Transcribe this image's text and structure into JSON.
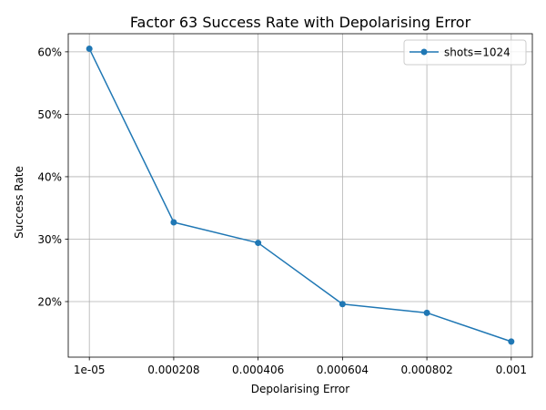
{
  "chart_data": {
    "type": "line",
    "title": "Factor 63 Success Rate with Depolarising Error",
    "xlabel": "Depolarising Error",
    "ylabel": "Success Rate",
    "x": [
      1e-05,
      0.000208,
      0.000406,
      0.000604,
      0.000802,
      0.001
    ],
    "x_tick_labels": [
      "1e-05",
      "0.000208",
      "0.000406",
      "0.000604",
      "0.000802",
      "0.001"
    ],
    "series": [
      {
        "name": "shots=1024",
        "color": "#1f77b4",
        "marker": "circle",
        "values": [
          60.5,
          32.7,
          29.4,
          19.6,
          18.2,
          13.6
        ]
      }
    ],
    "y_ticks": [
      20,
      30,
      40,
      50,
      60
    ],
    "y_tick_labels": [
      "20%",
      "30%",
      "40%",
      "50%",
      "60%"
    ],
    "ylim": [
      11.1,
      62.9
    ],
    "xlim": [
      -3.95e-05,
      0.0010495
    ],
    "grid": true,
    "legend_position": "top-right"
  }
}
